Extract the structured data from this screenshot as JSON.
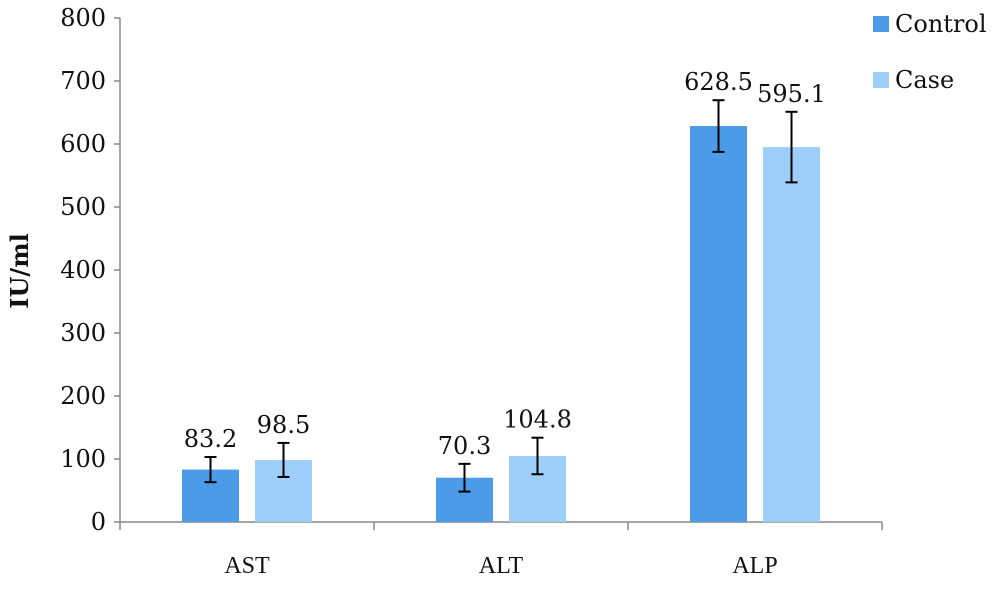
{
  "chart_data": {
    "type": "bar",
    "title": "",
    "xlabel": "",
    "ylabel": "IU/ml",
    "ylim": [
      0,
      800
    ],
    "yticks": [
      0,
      100,
      200,
      300,
      400,
      500,
      600,
      700,
      800
    ],
    "grid": false,
    "legend_position": "top-right",
    "categories": [
      "AST",
      "ALT",
      "ALP"
    ],
    "series": [
      {
        "name": "Control",
        "color": "#4c9be8",
        "values": [
          83.2,
          70.3,
          628.5
        ],
        "labels": [
          "83.2",
          "70.3",
          "628.5"
        ],
        "error": [
          20,
          22,
          41
        ],
        "error_color": "#000000"
      },
      {
        "name": "Case",
        "color": "#9dcffa",
        "values": [
          98.5,
          104.8,
          595.1
        ],
        "labels": [
          "98.5",
          "104.8",
          "595.1"
        ],
        "error": [
          27,
          29,
          56
        ],
        "error_color": "#000000"
      }
    ]
  }
}
